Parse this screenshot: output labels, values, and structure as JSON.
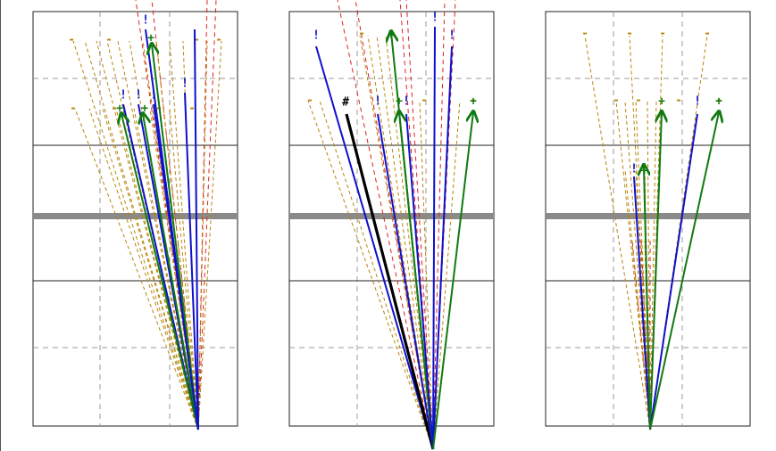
{
  "colors": {
    "blue": "#1010cc",
    "green": "#107a10",
    "black": "#000000",
    "red": "#dd2222",
    "gold": "#b8860b",
    "grid": "#999999",
    "band": "#8a8a8a",
    "frame": "#222222"
  },
  "markers": {
    "excl": "!",
    "plus": "+",
    "hash": "#",
    "dash": "-"
  },
  "panels": [
    {
      "name": "panel-left",
      "apex": [
        222,
        482
      ],
      "dashedTicks": [
        [
          80,
          45
        ],
        [
          122,
          45
        ],
        [
          220,
          45
        ],
        [
          245,
          45
        ],
        [
          82,
          122
        ],
        [
          128,
          122
        ],
        [
          178,
          122
        ],
        [
          215,
          122
        ]
      ],
      "rays": [
        {
          "c": "blue",
          "to": [
            163,
            33
          ],
          "tip": "excl"
        },
        {
          "c": "green",
          "to": [
            170,
            50
          ],
          "tip": "arrow",
          "label": "plus",
          "lp": [
            169,
            43
          ]
        },
        {
          "c": "blue",
          "to": [
            218,
            33
          ],
          "tip": "excl",
          "lp": [
            218,
            46
          ]
        },
        {
          "c": "blue",
          "to": [
            207,
            104
          ],
          "tip": "excl"
        },
        {
          "c": "blue",
          "to": [
            138,
            117
          ],
          "tip": "excl"
        },
        {
          "c": "green",
          "to": [
            136,
            128
          ],
          "tip": "arrow",
          "label": "plus",
          "lp": [
            134,
            122
          ]
        },
        {
          "c": "blue",
          "to": [
            155,
            117
          ],
          "tip": "excl"
        },
        {
          "c": "green",
          "to": [
            160,
            128
          ],
          "tip": "arrow",
          "label": "plus",
          "lp": [
            162,
            122
          ]
        },
        {
          "c": "blue",
          "to": [
            172,
            117
          ],
          "tip": "excl"
        }
      ],
      "gold": [
        [
          82,
          46
        ],
        [
          95,
          46
        ],
        [
          108,
          46
        ],
        [
          120,
          46
        ],
        [
          132,
          46
        ],
        [
          145,
          46
        ],
        [
          160,
          46
        ],
        [
          175,
          46
        ],
        [
          190,
          46
        ],
        [
          205,
          46
        ],
        [
          232,
          46
        ],
        [
          248,
          46
        ],
        [
          84,
          122
        ],
        [
          100,
          122
        ],
        [
          115,
          122
        ],
        [
          130,
          122
        ],
        [
          150,
          122
        ],
        [
          168,
          122
        ],
        [
          190,
          122
        ]
      ],
      "red": [
        [
          152,
          0
        ],
        [
          170,
          0
        ],
        [
          232,
          0
        ],
        [
          242,
          0
        ]
      ]
    },
    {
      "name": "panel-middle",
      "apex": [
        485,
        504
      ],
      "dashedTicks": [
        [
          347,
          113
        ],
        [
          405,
          38
        ],
        [
          440,
          38
        ],
        [
          475,
          113
        ],
        [
          530,
          113
        ]
      ],
      "rays": [
        {
          "c": "blue",
          "to": [
            354,
            52
          ],
          "tip": "excl",
          "lp": [
            354,
            40
          ]
        },
        {
          "c": "green",
          "to": [
            438,
            36
          ],
          "tip": "arrow",
          "label": "plus",
          "lp": [
            438,
            40
          ]
        },
        {
          "c": "blue",
          "to": [
            487,
            30
          ],
          "tip": "excl",
          "lp": [
            487,
            20
          ]
        },
        {
          "c": "blue",
          "to": [
            506,
            52
          ],
          "tip": "excl",
          "lp": [
            506,
            40
          ]
        },
        {
          "c": "black",
          "to": [
            388,
            128
          ],
          "tip": "hash",
          "lp": [
            387,
            115
          ],
          "w": 3.2
        },
        {
          "c": "blue",
          "to": [
            423,
            128
          ],
          "tip": "excl",
          "lp": [
            423,
            114
          ]
        },
        {
          "c": "green",
          "to": [
            447,
            126
          ],
          "tip": "arrow",
          "label": "plus",
          "lp": [
            447,
            114
          ]
        },
        {
          "c": "blue",
          "to": [
            455,
            128
          ],
          "tip": "excl",
          "lp": [
            455,
            114
          ]
        },
        {
          "c": "green",
          "to": [
            530,
            126
          ],
          "tip": "arrow",
          "label": "plus",
          "lp": [
            530,
            114
          ]
        }
      ],
      "gold": [
        [
          345,
          113
        ],
        [
          358,
          113
        ],
        [
          372,
          113
        ],
        [
          403,
          40
        ],
        [
          412,
          40
        ],
        [
          422,
          40
        ],
        [
          432,
          40
        ],
        [
          470,
          113
        ],
        [
          515,
          113
        ]
      ],
      "red": [
        [
          378,
          0
        ],
        [
          398,
          0
        ],
        [
          448,
          0
        ],
        [
          455,
          0
        ],
        [
          498,
          0
        ],
        [
          510,
          0
        ]
      ]
    },
    {
      "name": "panel-right",
      "apex": [
        728,
        482
      ],
      "dashedTicks": [
        [
          655,
          38
        ],
        [
          705,
          38
        ],
        [
          742,
          38
        ],
        [
          792,
          38
        ],
        [
          690,
          113
        ],
        [
          715,
          113
        ],
        [
          760,
          113
        ],
        [
          805,
          113
        ]
      ],
      "rays": [
        {
          "c": "green",
          "to": [
            741,
            126
          ],
          "tip": "arrow",
          "label": "plus",
          "lp": [
            741,
            114
          ]
        },
        {
          "c": "blue",
          "to": [
            781,
            128
          ],
          "tip": "excl",
          "lp": [
            781,
            114
          ]
        },
        {
          "c": "green",
          "to": [
            805,
            126
          ],
          "tip": "arrow",
          "label": "plus",
          "lp": [
            805,
            114
          ]
        },
        {
          "c": "blue",
          "to": [
            710,
            198
          ],
          "tip": "excl",
          "lp": [
            710,
            190
          ]
        },
        {
          "c": "green",
          "to": [
            721,
            186
          ],
          "tip": "arrow",
          "label": "plus",
          "lp": [
            721,
            192
          ]
        }
      ],
      "gold": [
        [
          655,
          40
        ],
        [
          705,
          40
        ],
        [
          742,
          40
        ],
        [
          792,
          40
        ],
        [
          690,
          114
        ],
        [
          700,
          114
        ],
        [
          712,
          114
        ],
        [
          725,
          114
        ],
        [
          735,
          114
        ],
        [
          700,
          190
        ],
        [
          712,
          190
        ],
        [
          722,
          190
        ],
        [
          712,
          270
        ],
        [
          722,
          270
        ]
      ],
      "red": [
        [
          708,
          270
        ],
        [
          718,
          270
        ],
        [
          728,
          270
        ]
      ]
    }
  ]
}
